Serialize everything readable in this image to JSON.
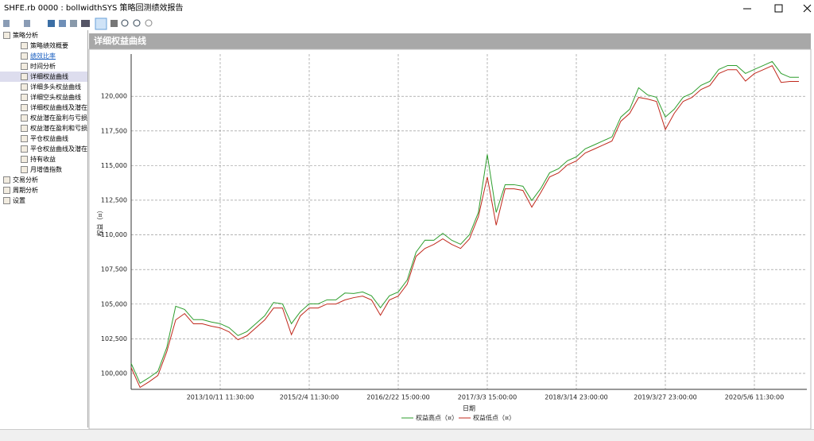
{
  "window": {
    "title": "SHFE.rb 0000 : bollwidthSYS 策略回测绩效报告"
  },
  "nav": {
    "groups": [
      {
        "label": "策略分析",
        "children": [
          "策略绩效概要",
          "绩效比率",
          "时间分析",
          "详细权益曲线",
          "详细多头权益曲线",
          "详细空头权益曲线",
          "详细权益曲线及潜在",
          "权益潜在盈利与亏损",
          "权益潜在盈利和亏损",
          "平仓权益曲线",
          "平仓权益曲线及潜在",
          "持有收益",
          "月增值指数"
        ]
      },
      {
        "label": "交易分析",
        "children": []
      },
      {
        "label": "周期分析",
        "children": []
      },
      {
        "label": "设置",
        "children": []
      }
    ]
  },
  "panel": {
    "title": "详细权益曲线"
  },
  "chart_data": {
    "type": "line",
    "x_label": "日期",
    "y_label": "权益（¤）",
    "categories": [
      null,
      null,
      null,
      null,
      null,
      null,
      null,
      null,
      null,
      null,
      "2013/10/11 11:30:00",
      null,
      null,
      null,
      null,
      null,
      null,
      null,
      null,
      null,
      "2015/2/4 11:30:00",
      null,
      null,
      null,
      null,
      null,
      null,
      null,
      null,
      null,
      "2016/2/22 15:00:00",
      null,
      null,
      null,
      null,
      null,
      null,
      null,
      null,
      null,
      "2017/3/3 15:00:00",
      null,
      null,
      null,
      null,
      null,
      null,
      null,
      null,
      null,
      "2018/3/14 23:00:00",
      null,
      null,
      null,
      null,
      null,
      null,
      null,
      null,
      null,
      "2019/3/27 23:00:00",
      null,
      null,
      null,
      null,
      null,
      null,
      null,
      null,
      null,
      "2020/5/6 11:30:00",
      null,
      null,
      null,
      null,
      null
    ],
    "series": [
      {
        "name": "权益高点（¤）",
        "color": "#2e9e2e",
        "values": [
          100720,
          99290,
          99690,
          100150,
          101870,
          104850,
          104620,
          103880,
          103880,
          103710,
          103590,
          103300,
          102730,
          103020,
          103590,
          104160,
          105120,
          105020,
          103590,
          104450,
          105020,
          105020,
          105310,
          105310,
          105800,
          105770,
          105880,
          105600,
          104740,
          105600,
          105880,
          106740,
          108750,
          109620,
          109610,
          110110,
          109610,
          109320,
          110010,
          111620,
          115800,
          111620,
          113620,
          113620,
          113510,
          112480,
          113340,
          114480,
          114770,
          115350,
          115630,
          116210,
          116490,
          116780,
          117070,
          118500,
          119070,
          120620,
          120100,
          119930,
          118500,
          119070,
          119930,
          120220,
          120790,
          121080,
          121940,
          122220,
          122220,
          121650,
          121940,
          122220,
          122510,
          121650,
          121370,
          121370
        ]
      },
      {
        "name": "权益低点（¤）",
        "color": "#c0281c",
        "values": [
          100420,
          98990,
          99390,
          99850,
          101570,
          103860,
          104320,
          103580,
          103580,
          103410,
          103290,
          103000,
          102430,
          102720,
          103290,
          103860,
          104720,
          104720,
          102800,
          104150,
          104720,
          104720,
          105010,
          105010,
          105300,
          105470,
          105580,
          105300,
          104200,
          105300,
          105580,
          106440,
          108450,
          109020,
          109310,
          109710,
          109310,
          109020,
          109710,
          111320,
          114180,
          110700,
          113320,
          113320,
          113210,
          112000,
          113040,
          114180,
          114470,
          115050,
          115330,
          115910,
          116190,
          116480,
          116770,
          118200,
          118770,
          119920,
          119800,
          119630,
          117600,
          118770,
          119630,
          119920,
          120490,
          120780,
          121640,
          121920,
          121920,
          121100,
          121640,
          121920,
          122210,
          121000,
          121070,
          121070
        ]
      }
    ],
    "ylim": [
      98850,
      123050
    ],
    "yticks": [
      {
        "value": 100000,
        "label": "100,000"
      },
      {
        "value": 102500,
        "label": "102,500"
      },
      {
        "value": 105000,
        "label": "105,000"
      },
      {
        "value": 107500,
        "label": "107,500"
      },
      {
        "value": 110000,
        "label": "110,000"
      },
      {
        "value": 112500,
        "label": "112,500"
      },
      {
        "value": 115000,
        "label": "115,000"
      },
      {
        "value": 117500,
        "label": "117,500"
      },
      {
        "value": 120000,
        "label": "120,000"
      }
    ],
    "grid": true,
    "legend": "bottom"
  }
}
